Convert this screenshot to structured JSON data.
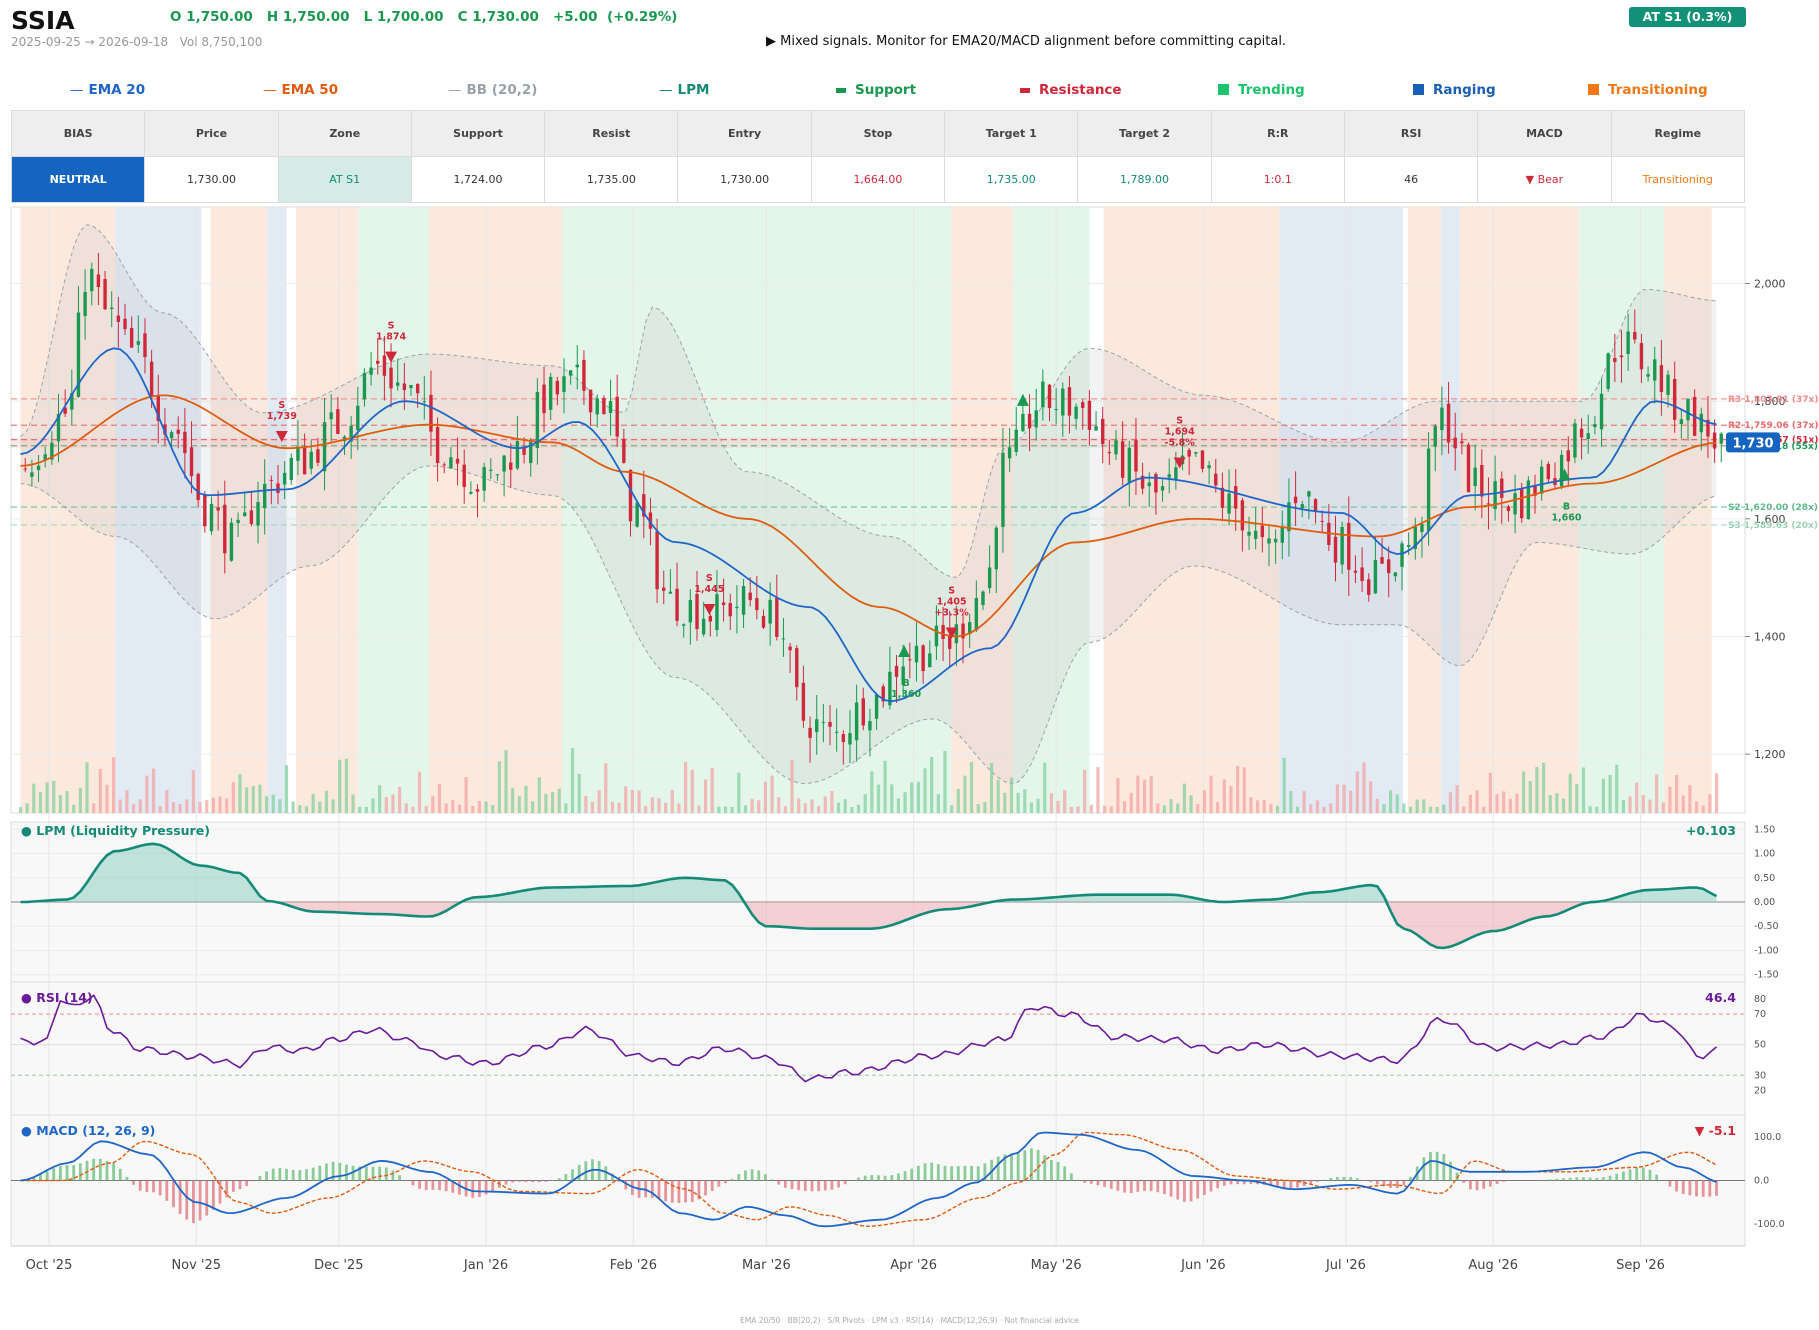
{
  "header": {
    "ticker": "SSIA",
    "ohlc": "O 1,750.00   H 1,750.00   L 1,700.00   C 1,730.00   +5.00  (+0.29%)",
    "date_range": "2025-09-25 → 2026-09-18   Vol 8,750,100",
    "signal": "▶  Mixed signals. Monitor for EMA20/MACD alignment before committing capital.",
    "badge": "AT S1  (0.3%)"
  },
  "legend": [
    {
      "label": "EMA 20",
      "color": "#1f66c8",
      "glyph": "line"
    },
    {
      "label": "EMA 50",
      "color": "#e05c0e",
      "glyph": "line"
    },
    {
      "label": "BB (20,2)",
      "color": "#9aa3ab",
      "glyph": "line"
    },
    {
      "label": "LPM",
      "color": "#158a76",
      "glyph": "line"
    },
    {
      "label": "Support",
      "color": "#1a9850",
      "glyph": "bar"
    },
    {
      "label": "Resistance",
      "color": "#d0283b",
      "glyph": "bar"
    },
    {
      "label": "Trending",
      "color": "#1bc46b",
      "glyph": "square"
    },
    {
      "label": "Ranging",
      "color": "#1a5fb4",
      "glyph": "square"
    },
    {
      "label": "Transitioning",
      "color": "#f07818",
      "glyph": "square"
    }
  ],
  "table": {
    "headers": [
      "BIAS",
      "Price",
      "Zone",
      "Support",
      "Resist",
      "Entry",
      "Stop",
      "Target 1",
      "Target 2",
      "R:R",
      "RSI",
      "MACD",
      "Regime"
    ],
    "values": [
      "NEUTRAL",
      "1,730.00",
      "AT S1",
      "1,724.00",
      "1,735.00",
      "1,730.00",
      "1,664.00",
      "1,735.00",
      "1,789.00",
      "1:0.1",
      "46",
      "▼ Bear",
      "Transitioning"
    ],
    "colors": [
      "#ffffff",
      "#333333",
      "#158a76",
      "#333333",
      "#333333",
      "#333333",
      "#d0283b",
      "#158a76",
      "#158a76",
      "#d0283b",
      "#333333",
      "#d0283b",
      "#f07818"
    ]
  },
  "panels": {
    "lpm_title": "● LPM (Liquidity Pressure)",
    "lpm_value": "+0.103",
    "rsi_title": "● RSI (14)",
    "rsi_value": "46.4",
    "macd_title": "● MACD (12, 26, 9)",
    "macd_value": "▼ -5.1"
  },
  "footer": "EMA 20/50  ·  BB(20,2)  ·  S/R Pivots  ·  LPM v3  ·  RSI(14)  ·  MACD(12,26,9)  ·  Not financial advice",
  "chart_data": {
    "type": "candlestick",
    "x_labels": [
      "Oct '25",
      "Nov '25",
      "Dec '25",
      "Jan '26",
      "Feb '26",
      "Mar '26",
      "Apr '26",
      "May '26",
      "Jun '26",
      "Jul '26",
      "Aug '26",
      "Sep '26"
    ],
    "price_ylim": [
      1100,
      2130
    ],
    "price_ticks": [
      2000,
      1800,
      1600,
      1400,
      1200
    ],
    "last_price_label": "1,730",
    "levels": [
      {
        "label": "R3 1,803.91 (37x)",
        "value": 1803.91,
        "color": "#f08a8a"
      },
      {
        "label": "R2 1,759.06 (37x)",
        "value": 1759.06,
        "color": "#ea6a6a"
      },
      {
        "label": "R1 1,734.57 (51x)",
        "value": 1734.57,
        "color": "#d0283b"
      },
      {
        "label": "S1 1,724.18 (55x)",
        "value": 1724.18,
        "color": "#1a9850"
      },
      {
        "label": "S2 1,620.00 (28x)",
        "value": 1620.0,
        "color": "#5fb98a"
      },
      {
        "label": "S3 1,589.63 (20x)",
        "value": 1589.63,
        "color": "#9bd3b3"
      }
    ],
    "regimes": [
      {
        "from": "2025-09-25",
        "to": "2025-10-15",
        "regime": "Transitioning"
      },
      {
        "from": "2025-10-15",
        "to": "2025-11-02",
        "regime": "Ranging"
      },
      {
        "from": "2025-11-04",
        "to": "2025-11-16",
        "regime": "Transitioning"
      },
      {
        "from": "2025-11-16",
        "to": "2025-11-20",
        "regime": "Ranging"
      },
      {
        "from": "2025-11-22",
        "to": "2025-12-05",
        "regime": "Transitioning"
      },
      {
        "from": "2025-12-05",
        "to": "2025-12-20",
        "regime": "Trending"
      },
      {
        "from": "2025-12-20",
        "to": "2026-01-17",
        "regime": "Transitioning"
      },
      {
        "from": "2026-01-17",
        "to": "2026-04-09",
        "regime": "Trending"
      },
      {
        "from": "2026-04-09",
        "to": "2026-04-22",
        "regime": "Transitioning"
      },
      {
        "from": "2026-04-22",
        "to": "2026-05-08",
        "regime": "Trending"
      },
      {
        "from": "2026-05-11",
        "to": "2026-06-17",
        "regime": "Transitioning"
      },
      {
        "from": "2026-06-17",
        "to": "2026-07-13",
        "regime": "Ranging"
      },
      {
        "from": "2026-07-14",
        "to": "2026-07-21",
        "regime": "Transitioning"
      },
      {
        "from": "2026-07-21",
        "to": "2026-07-25",
        "regime": "Ranging"
      },
      {
        "from": "2026-07-25",
        "to": "2026-08-19",
        "regime": "Transitioning"
      },
      {
        "from": "2026-08-19",
        "to": "2026-09-06",
        "regime": "Trending"
      },
      {
        "from": "2026-09-06",
        "to": "2026-09-16",
        "regime": "Transitioning"
      }
    ],
    "signals": [
      {
        "date": "2025-11-19",
        "type": "S",
        "price": "1,739"
      },
      {
        "date": "2025-12-12",
        "type": "S",
        "price": "1,874"
      },
      {
        "date": "2026-02-17",
        "type": "S",
        "price": "1,445"
      },
      {
        "date": "2026-03-30",
        "type": "B",
        "price": "1,360"
      },
      {
        "date": "2026-04-09",
        "type": "S",
        "price": "1,405",
        "pct": "+3.3%"
      },
      {
        "date": "2026-05-27",
        "type": "S",
        "price": "1,694",
        "pct": "-5.8%"
      },
      {
        "date": "2026-08-16",
        "type": "B",
        "price": "1,660"
      }
    ],
    "close_anchors": [
      [
        "2025-09-25",
        1690
      ],
      [
        "2025-10-05",
        1780
      ],
      [
        "2025-10-09",
        2020
      ],
      [
        "2025-10-13",
        1950
      ],
      [
        "2025-10-19",
        1880
      ],
      [
        "2025-10-27",
        1760
      ],
      [
        "2025-11-03",
        1620
      ],
      [
        "2025-11-09",
        1560
      ],
      [
        "2025-11-15",
        1650
      ],
      [
        "2025-11-23",
        1700
      ],
      [
        "2025-12-01",
        1760
      ],
      [
        "2025-12-09",
        1860
      ],
      [
        "2025-12-15",
        1820
      ],
      [
        "2025-12-23",
        1720
      ],
      [
        "2025-12-31",
        1660
      ],
      [
        "2026-01-08",
        1720
      ],
      [
        "2026-01-14",
        1810
      ],
      [
        "2026-01-20",
        1830
      ],
      [
        "2026-01-26",
        1800
      ],
      [
        "2026-02-01",
        1620
      ],
      [
        "2026-02-09",
        1460
      ],
      [
        "2026-02-17",
        1440
      ],
      [
        "2026-02-25",
        1460
      ],
      [
        "2026-03-03",
        1430
      ],
      [
        "2026-03-09",
        1260
      ],
      [
        "2026-03-15",
        1230
      ],
      [
        "2026-03-23",
        1290
      ],
      [
        "2026-03-31",
        1370
      ],
      [
        "2026-04-08",
        1390
      ],
      [
        "2026-04-16",
        1480
      ],
      [
        "2026-04-20",
        1690
      ],
      [
        "2026-04-28",
        1800
      ],
      [
        "2026-05-06",
        1790
      ],
      [
        "2026-05-14",
        1700
      ],
      [
        "2026-05-22",
        1640
      ],
      [
        "2026-05-30",
        1690
      ],
      [
        "2026-06-07",
        1620
      ],
      [
        "2026-06-15",
        1540
      ],
      [
        "2026-06-21",
        1650
      ],
      [
        "2026-06-29",
        1560
      ],
      [
        "2026-07-07",
        1500
      ],
      [
        "2026-07-15",
        1560
      ],
      [
        "2026-07-21",
        1770
      ],
      [
        "2026-07-29",
        1650
      ],
      [
        "2026-08-06",
        1630
      ],
      [
        "2026-08-14",
        1690
      ],
      [
        "2026-08-20",
        1760
      ],
      [
        "2026-08-28",
        1900
      ],
      [
        "2026-09-03",
        1860
      ],
      [
        "2026-09-09",
        1790
      ],
      [
        "2026-09-18",
        1730
      ]
    ],
    "ema20_anchors": [
      [
        "2025-09-25",
        1710
      ],
      [
        "2025-10-15",
        1890
      ],
      [
        "2025-11-03",
        1640
      ],
      [
        "2025-11-20",
        1650
      ],
      [
        "2025-12-15",
        1800
      ],
      [
        "2026-01-08",
        1720
      ],
      [
        "2026-01-20",
        1765
      ],
      [
        "2026-02-10",
        1560
      ],
      [
        "2026-03-10",
        1450
      ],
      [
        "2026-03-27",
        1290
      ],
      [
        "2026-04-17",
        1380
      ],
      [
        "2026-05-05",
        1610
      ],
      [
        "2026-05-20",
        1670
      ],
      [
        "2026-06-30",
        1610
      ],
      [
        "2026-07-12",
        1540
      ],
      [
        "2026-07-27",
        1640
      ],
      [
        "2026-08-22",
        1670
      ],
      [
        "2026-09-04",
        1800
      ],
      [
        "2026-09-18",
        1760
      ]
    ],
    "ema50_anchors": [
      [
        "2025-09-25",
        1690
      ],
      [
        "2025-10-25",
        1810
      ],
      [
        "2025-11-20",
        1720
      ],
      [
        "2025-12-20",
        1760
      ],
      [
        "2026-01-15",
        1730
      ],
      [
        "2026-01-30",
        1680
      ],
      [
        "2026-02-25",
        1600
      ],
      [
        "2026-03-25",
        1450
      ],
      [
        "2026-04-10",
        1400
      ],
      [
        "2026-05-05",
        1560
      ],
      [
        "2026-05-30",
        1600
      ],
      [
        "2026-07-08",
        1570
      ],
      [
        "2026-07-27",
        1620
      ],
      [
        "2026-08-22",
        1660
      ],
      [
        "2026-09-18",
        1730
      ]
    ],
    "bb_upper_anchors": [
      [
        "2025-09-25",
        1740
      ],
      [
        "2025-10-09",
        2100
      ],
      [
        "2025-10-25",
        1950
      ],
      [
        "2025-11-15",
        1780
      ],
      [
        "2025-12-20",
        1880
      ],
      [
        "2026-01-15",
        1860
      ],
      [
        "2026-01-30",
        1780
      ],
      [
        "2026-02-05",
        1960
      ],
      [
        "2026-02-25",
        1680
      ],
      [
        "2026-03-27",
        1570
      ],
      [
        "2026-04-10",
        1500
      ],
      [
        "2026-04-20",
        1720
      ],
      [
        "2026-05-08",
        1890
      ],
      [
        "2026-06-01",
        1810
      ],
      [
        "2026-06-30",
        1730
      ],
      [
        "2026-07-20",
        1800
      ],
      [
        "2026-08-20",
        1800
      ],
      [
        "2026-09-02",
        1990
      ],
      [
        "2026-09-18",
        1970
      ]
    ],
    "bb_lower_anchors": [
      [
        "2025-09-25",
        1660
      ],
      [
        "2025-10-15",
        1570
      ],
      [
        "2025-11-05",
        1430
      ],
      [
        "2025-11-25",
        1520
      ],
      [
        "2025-12-20",
        1690
      ],
      [
        "2026-01-15",
        1640
      ],
      [
        "2026-02-10",
        1330
      ],
      [
        "2026-03-09",
        1150
      ],
      [
        "2026-04-05",
        1260
      ],
      [
        "2026-04-22",
        1150
      ],
      [
        "2026-05-08",
        1390
      ],
      [
        "2026-05-30",
        1520
      ],
      [
        "2026-06-30",
        1420
      ],
      [
        "2026-07-12",
        1420
      ],
      [
        "2026-07-25",
        1350
      ],
      [
        "2026-08-10",
        1560
      ],
      [
        "2026-08-30",
        1540
      ],
      [
        "2026-09-18",
        1640
      ]
    ],
    "lpm_anchors": [
      [
        "2025-09-25",
        0
      ],
      [
        "2025-10-05",
        0.05
      ],
      [
        "2025-10-15",
        1.05
      ],
      [
        "2025-10-23",
        1.2
      ],
      [
        "2025-11-02",
        0.75
      ],
      [
        "2025-11-10",
        0.6
      ],
      [
        "2025-11-16",
        0.02
      ],
      [
        "2025-11-26",
        -0.2
      ],
      [
        "2025-12-10",
        -0.25
      ],
      [
        "2025-12-20",
        -0.3
      ],
      [
        "2025-12-30",
        0.1
      ],
      [
        "2026-01-15",
        0.3
      ],
      [
        "2026-01-31",
        0.33
      ],
      [
        "2026-02-12",
        0.5
      ],
      [
        "2026-02-20",
        0.45
      ],
      [
        "2026-03-01",
        -0.5
      ],
      [
        "2026-03-11",
        -0.55
      ],
      [
        "2026-03-23",
        -0.55
      ],
      [
        "2026-04-08",
        -0.15
      ],
      [
        "2026-04-22",
        0.05
      ],
      [
        "2026-05-10",
        0.15
      ],
      [
        "2026-05-25",
        0.15
      ],
      [
        "2026-06-05",
        0.0
      ],
      [
        "2026-06-15",
        0.05
      ],
      [
        "2026-06-25",
        0.2
      ],
      [
        "2026-07-07",
        0.35
      ],
      [
        "2026-07-13",
        -0.55
      ],
      [
        "2026-07-21",
        -0.95
      ],
      [
        "2026-08-01",
        -0.6
      ],
      [
        "2026-08-12",
        -0.3
      ],
      [
        "2026-08-22",
        0.0
      ],
      [
        "2026-09-03",
        0.25
      ],
      [
        "2026-09-13",
        0.3
      ],
      [
        "2026-09-18",
        0.1
      ]
    ],
    "rsi_anchors": [
      [
        "2025-09-25",
        50
      ],
      [
        "2025-10-01",
        50
      ],
      [
        "2025-10-03",
        79
      ],
      [
        "2025-10-06",
        72
      ],
      [
        "2025-10-10",
        80
      ],
      [
        "2025-10-14",
        58
      ],
      [
        "2025-10-20",
        46
      ],
      [
        "2025-11-01",
        42
      ],
      [
        "2025-11-10",
        38
      ],
      [
        "2025-11-16",
        50
      ],
      [
        "2025-11-23",
        48
      ],
      [
        "2025-12-01",
        56
      ],
      [
        "2025-12-08",
        62
      ],
      [
        "2025-12-16",
        54
      ],
      [
        "2025-12-22",
        44
      ],
      [
        "2026-01-01",
        38
      ],
      [
        "2026-01-14",
        48
      ],
      [
        "2026-01-22",
        58
      ],
      [
        "2026-02-02",
        40
      ],
      [
        "2026-02-10",
        36
      ],
      [
        "2026-02-20",
        46
      ],
      [
        "2026-03-02",
        40
      ],
      [
        "2026-03-10",
        28
      ],
      [
        "2026-03-18",
        33
      ],
      [
        "2026-04-05",
        45
      ],
      [
        "2026-04-20",
        55
      ],
      [
        "2026-04-26",
        76
      ],
      [
        "2026-05-04",
        70
      ],
      [
        "2026-05-14",
        54
      ],
      [
        "2026-05-24",
        52
      ],
      [
        "2026-06-04",
        44
      ],
      [
        "2026-06-14",
        48
      ],
      [
        "2026-06-28",
        42
      ],
      [
        "2026-07-12",
        40
      ],
      [
        "2026-07-21",
        68
      ],
      [
        "2026-07-31",
        50
      ],
      [
        "2026-08-14",
        52
      ],
      [
        "2026-08-24",
        57
      ],
      [
        "2026-09-01",
        70
      ],
      [
        "2026-09-08",
        62
      ],
      [
        "2026-09-13",
        42
      ],
      [
        "2026-09-18",
        46
      ]
    ],
    "macd_anchors": [
      [
        "2025-09-25",
        0
      ],
      [
        "2025-10-05",
        40
      ],
      [
        "2025-10-12",
        90
      ],
      [
        "2025-10-22",
        60
      ],
      [
        "2025-11-01",
        -50
      ],
      [
        "2025-11-08",
        -75
      ],
      [
        "2025-11-20",
        -40
      ],
      [
        "2025-12-01",
        10
      ],
      [
        "2025-12-10",
        45
      ],
      [
        "2025-12-20",
        20
      ],
      [
        "2025-12-30",
        -25
      ],
      [
        "2026-01-14",
        -30
      ],
      [
        "2026-01-24",
        25
      ],
      [
        "2026-02-03",
        -20
      ],
      [
        "2026-02-11",
        -75
      ],
      [
        "2026-02-18",
        -90
      ],
      [
        "2026-02-25",
        -60
      ],
      [
        "2026-03-05",
        -80
      ],
      [
        "2026-03-13",
        -105
      ],
      [
        "2026-03-25",
        -90
      ],
      [
        "2026-04-06",
        -40
      ],
      [
        "2026-04-14",
        -5
      ],
      [
        "2026-04-22",
        60
      ],
      [
        "2026-04-28",
        110
      ],
      [
        "2026-05-06",
        105
      ],
      [
        "2026-05-18",
        70
      ],
      [
        "2026-05-30",
        10
      ],
      [
        "2026-06-10",
        0
      ],
      [
        "2026-06-20",
        -20
      ],
      [
        "2026-07-02",
        -10
      ],
      [
        "2026-07-12",
        -30
      ],
      [
        "2026-07-19",
        45
      ],
      [
        "2026-07-27",
        20
      ],
      [
        "2026-08-08",
        20
      ],
      [
        "2026-08-22",
        30
      ],
      [
        "2026-09-02",
        65
      ],
      [
        "2026-09-10",
        30
      ],
      [
        "2026-09-18",
        -5
      ]
    ],
    "lpm_ticks": [
      1.5,
      1.0,
      0.5,
      0.0,
      -0.5,
      -1.0,
      -1.5
    ],
    "rsi_ticks": [
      80,
      70,
      50,
      30,
      20
    ],
    "macd_ticks": [
      100,
      0,
      -100
    ]
  }
}
